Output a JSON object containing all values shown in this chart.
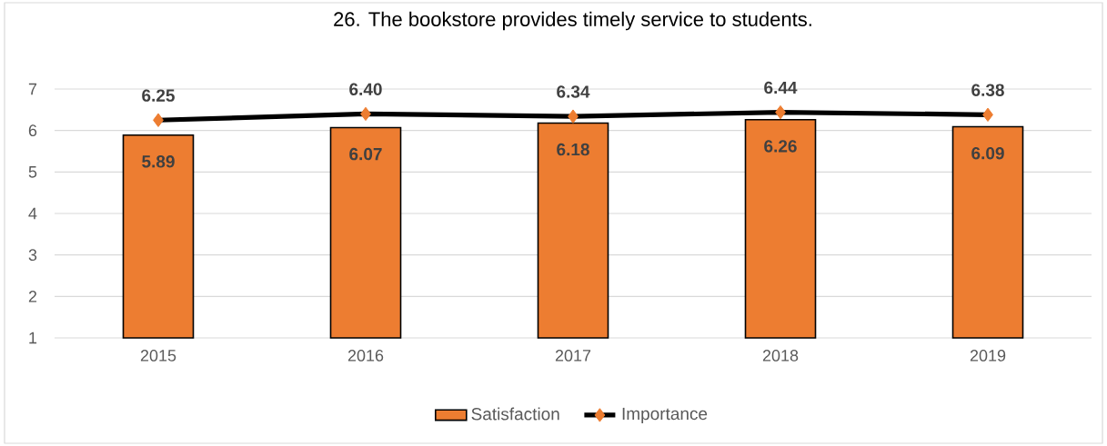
{
  "chart_data": {
    "type": "bar",
    "title": "26. The bookstore provides timely service to students.",
    "categories": [
      "2015",
      "2016",
      "2017",
      "2018",
      "2019"
    ],
    "ylim": [
      1,
      7
    ],
    "yticks": [
      1,
      2,
      3,
      4,
      5,
      6,
      7
    ],
    "grid": "y",
    "legend": "bottom",
    "series": [
      {
        "name": "Satisfaction",
        "color": "#ed7d31",
        "values": [
          5.89,
          6.07,
          6.18,
          6.26,
          6.09
        ],
        "value_labels": [
          "5.89",
          "6.07",
          "6.18",
          "6.26",
          "6.09"
        ]
      },
      {
        "name": "Importance",
        "type": "line",
        "color": "#000000",
        "marker": "diamond",
        "values": [
          6.25,
          6.4,
          6.34,
          6.44,
          6.38
        ],
        "value_labels": [
          "6.25",
          "6.40",
          "6.34",
          "6.44",
          "6.38"
        ]
      }
    ]
  }
}
